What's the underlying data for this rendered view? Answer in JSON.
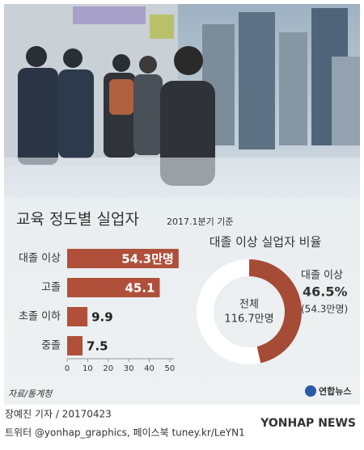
{
  "chart_data": [
    {
      "type": "bar",
      "orientation": "horizontal",
      "title": "교육 정도별 실업자",
      "subtitle": "2017.1분기 기준",
      "categories": [
        "대졸 이상",
        "고졸",
        "초졸 이하",
        "중졸"
      ],
      "values": [
        54.3,
        45.1,
        9.9,
        7.5
      ],
      "value_labels": [
        "54.3만명",
        "45.1",
        "9.9",
        "7.5"
      ],
      "color": "#b0503b",
      "xlim": [
        0,
        52
      ],
      "xticks": [
        0,
        10,
        20,
        30,
        40,
        50
      ]
    },
    {
      "type": "pie",
      "title": "대졸 이상 실업자 비율",
      "categories": [
        "대졸 이상",
        null
      ],
      "values": [
        46.5,
        53.5
      ],
      "value_labels": [
        "46.5%",
        null
      ],
      "annotation": "(54.3만명)",
      "colors": [
        "#a64b36",
        "#ffffff"
      ],
      "center_label": "전체",
      "center_value": "116.7만명"
    }
  ],
  "source": "자료/통계청",
  "logo": "연합뉴스",
  "credit": "장예진 기자 / 20170423",
  "social": "트위터 @yonhap_graphics, 페이스북 tuney.kr/LeYN1",
  "watermark": "YONHAP NEWS"
}
